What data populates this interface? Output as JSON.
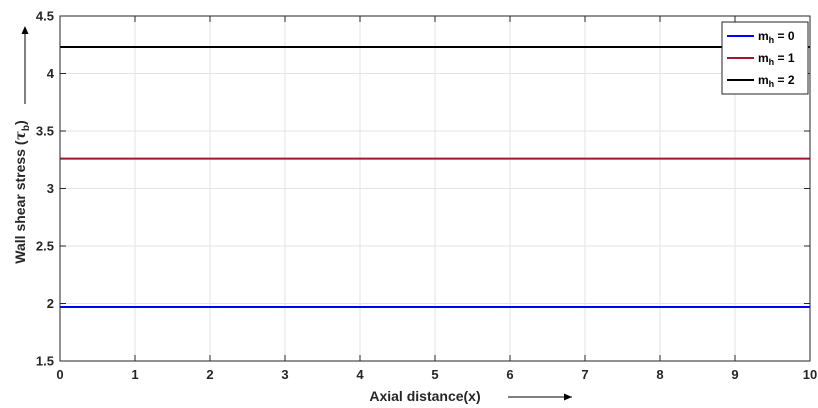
{
  "chart_data": {
    "type": "line",
    "xlabel": "Axial distance(x)",
    "ylabel_main": "Wall shear stress (",
    "ylabel_tau": "τ",
    "ylabel_sub": "b",
    "ylabel_close": ")",
    "xlim": [
      0,
      10
    ],
    "ylim": [
      1.5,
      4.5
    ],
    "x_ticks": [
      0,
      1,
      2,
      3,
      4,
      5,
      6,
      7,
      8,
      9,
      10
    ],
    "y_ticks": [
      1.5,
      2,
      2.5,
      3,
      3.5,
      4,
      4.5
    ],
    "grid": true,
    "legend_position": "top-right",
    "series": [
      {
        "name": "m",
        "sub": "h",
        "suffix": " = 0",
        "color": "#0000ff",
        "x": [
          0,
          10
        ],
        "y": [
          1.97,
          1.97
        ]
      },
      {
        "name": "m",
        "sub": "h",
        "suffix": " = 1",
        "color": "#a2142f",
        "x": [
          0,
          10
        ],
        "y": [
          3.26,
          3.26
        ]
      },
      {
        "name": "m",
        "sub": "h",
        "suffix": " = 2",
        "color": "#000000",
        "x": [
          0,
          10
        ],
        "y": [
          4.23,
          4.23
        ]
      }
    ]
  }
}
